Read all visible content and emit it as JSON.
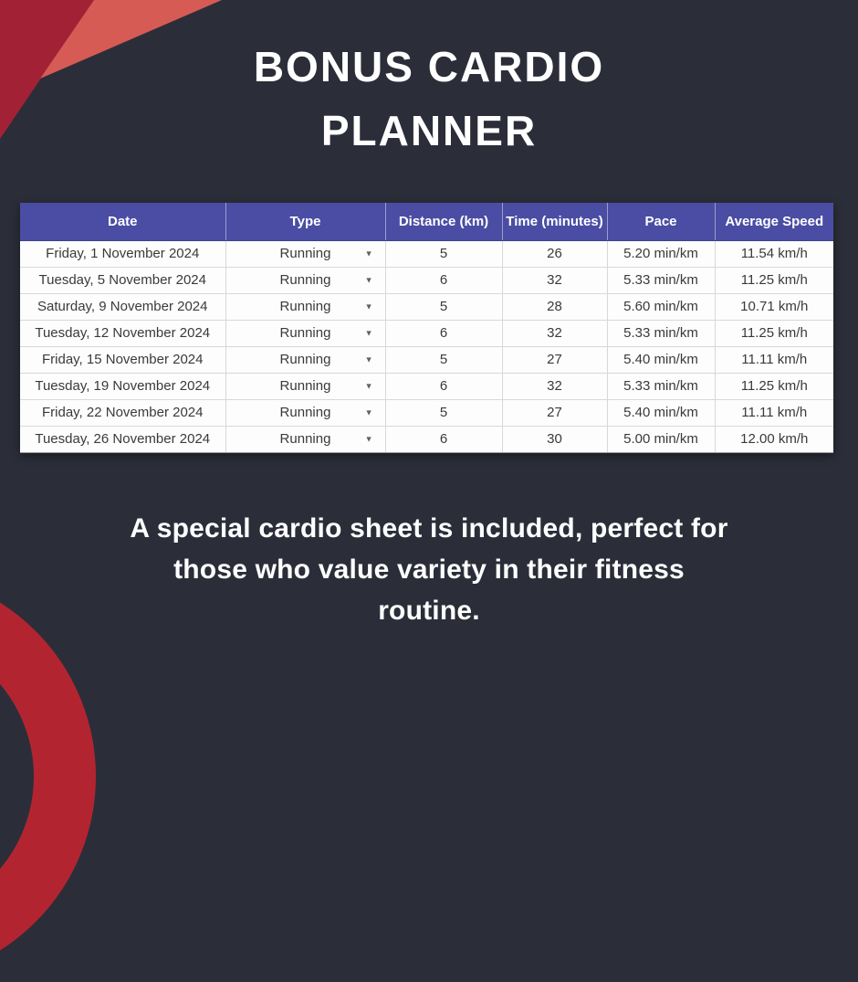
{
  "title": {
    "lines": [
      "BONUS CARDIO",
      "PLANNER"
    ]
  },
  "description": {
    "lines": [
      "A special cardio sheet is included, perfect for",
      "those who value variety in their fitness",
      "routine."
    ]
  },
  "table": {
    "columns": [
      "Date",
      "Type",
      "Distance (km)",
      "Time (minutes)",
      "Pace",
      "Average Speed"
    ],
    "row_keys": [
      "date",
      "type",
      "distance",
      "time",
      "pace",
      "avg_speed"
    ],
    "dropdown_icon": "▼",
    "rows": [
      {
        "date": "Friday, 1 November 2024",
        "type": "Running",
        "distance": "5",
        "time": "26",
        "pace": "5.20 min/km",
        "avg_speed": "11.54 km/h"
      },
      {
        "date": "Tuesday, 5 November 2024",
        "type": "Running",
        "distance": "6",
        "time": "32",
        "pace": "5.33 min/km",
        "avg_speed": "11.25 km/h"
      },
      {
        "date": "Saturday, 9 November 2024",
        "type": "Running",
        "distance": "5",
        "time": "28",
        "pace": "5.60 min/km",
        "avg_speed": "10.71 km/h"
      },
      {
        "date": "Tuesday, 12 November 2024",
        "type": "Running",
        "distance": "6",
        "time": "32",
        "pace": "5.33 min/km",
        "avg_speed": "11.25 km/h"
      },
      {
        "date": "Friday, 15 November 2024",
        "type": "Running",
        "distance": "5",
        "time": "27",
        "pace": "5.40 min/km",
        "avg_speed": "11.11 km/h"
      },
      {
        "date": "Tuesday, 19 November 2024",
        "type": "Running",
        "distance": "6",
        "time": "32",
        "pace": "5.33 min/km",
        "avg_speed": "11.25 km/h"
      },
      {
        "date": "Friday, 22 November 2024",
        "type": "Running",
        "distance": "5",
        "time": "27",
        "pace": "5.40 min/km",
        "avg_speed": "11.11 km/h"
      },
      {
        "date": "Tuesday, 26 November 2024",
        "type": "Running",
        "distance": "6",
        "time": "30",
        "pace": "5.00 min/km",
        "avg_speed": "12.00 km/h"
      }
    ]
  },
  "colors": {
    "background": "#2b2e39",
    "corner_triangle_dark": "#a32134",
    "corner_triangle_light": "#d65b55",
    "corner_ring": "#b22530",
    "table_header": "#4a4da3",
    "table_gridline": "#d8d8d8",
    "text_light": "#ffffff",
    "text_dark": "#3a3a3a"
  }
}
